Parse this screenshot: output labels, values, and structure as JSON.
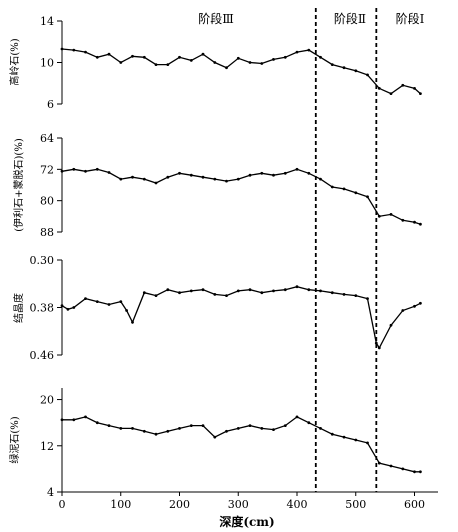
{
  "chart_data": [
    {
      "type": "line",
      "ylabel": "高岭石(%)",
      "ylim": [
        6,
        14
      ],
      "y_ticks": [
        "14",
        "10",
        "6"
      ],
      "y_tick_values": [
        14,
        10,
        6
      ],
      "inverted": false,
      "x": [
        0,
        20,
        40,
        60,
        80,
        100,
        120,
        140,
        160,
        180,
        200,
        220,
        240,
        260,
        280,
        300,
        320,
        340,
        360,
        380,
        400,
        420,
        440,
        460,
        480,
        500,
        520,
        540,
        560,
        580,
        600,
        610
      ],
      "values": [
        11.3,
        11.2,
        11.0,
        10.5,
        10.8,
        10.0,
        10.6,
        10.5,
        9.8,
        9.8,
        10.5,
        10.2,
        10.8,
        10.0,
        9.5,
        10.4,
        10.0,
        9.9,
        10.3,
        10.5,
        11.0,
        11.2,
        10.5,
        9.8,
        9.5,
        9.2,
        8.8,
        7.5,
        7.0,
        7.8,
        7.5,
        7.0
      ]
    },
    {
      "type": "line",
      "ylabel": "(伊利石+蒙脱石)(%)",
      "ylim": [
        64,
        88
      ],
      "y_ticks": [
        "64",
        "72",
        "80",
        "88"
      ],
      "y_tick_values": [
        64,
        72,
        80,
        88
      ],
      "inverted": true,
      "x": [
        0,
        20,
        40,
        60,
        80,
        100,
        120,
        140,
        160,
        180,
        200,
        220,
        240,
        260,
        280,
        300,
        320,
        340,
        360,
        380,
        400,
        420,
        440,
        460,
        480,
        500,
        520,
        540,
        560,
        580,
        600,
        610
      ],
      "values": [
        72.5,
        72.0,
        72.5,
        72.0,
        72.8,
        74.5,
        74.0,
        74.5,
        75.5,
        74.0,
        73.0,
        73.5,
        74.0,
        74.5,
        75.0,
        74.5,
        73.5,
        73.0,
        73.5,
        73.0,
        72.0,
        73.0,
        74.5,
        76.5,
        77.0,
        78.0,
        79.0,
        84.0,
        83.5,
        85.0,
        85.5,
        86.0
      ]
    },
    {
      "type": "line",
      "ylabel": "结晶度",
      "ylim": [
        0.3,
        0.46
      ],
      "y_ticks": [
        "0.30",
        "0.38",
        "0.46"
      ],
      "y_tick_values": [
        0.3,
        0.38,
        0.46
      ],
      "inverted": true,
      "x": [
        0,
        10,
        20,
        40,
        60,
        80,
        100,
        110,
        120,
        140,
        160,
        180,
        200,
        220,
        240,
        260,
        280,
        300,
        320,
        340,
        360,
        380,
        400,
        420,
        440,
        460,
        480,
        500,
        520,
        535,
        540,
        560,
        580,
        600,
        610
      ],
      "values": [
        0.377,
        0.383,
        0.38,
        0.365,
        0.37,
        0.375,
        0.37,
        0.385,
        0.405,
        0.355,
        0.36,
        0.35,
        0.355,
        0.352,
        0.35,
        0.358,
        0.36,
        0.352,
        0.35,
        0.355,
        0.352,
        0.35,
        0.345,
        0.35,
        0.352,
        0.355,
        0.358,
        0.36,
        0.365,
        0.44,
        0.448,
        0.41,
        0.385,
        0.378,
        0.373
      ]
    },
    {
      "type": "line",
      "ylabel": "绿泥石(%)",
      "ylim": [
        4,
        22
      ],
      "y_ticks": [
        "20",
        "12",
        "4"
      ],
      "y_tick_values": [
        20,
        12,
        4
      ],
      "inverted": false,
      "x": [
        0,
        20,
        40,
        60,
        80,
        100,
        120,
        140,
        160,
        180,
        200,
        220,
        240,
        260,
        280,
        300,
        320,
        340,
        360,
        380,
        400,
        420,
        440,
        460,
        480,
        500,
        520,
        540,
        560,
        580,
        600,
        610
      ],
      "values": [
        16.5,
        16.5,
        17.0,
        16.0,
        15.5,
        15.0,
        15.0,
        14.5,
        14.0,
        14.5,
        15.0,
        15.5,
        15.5,
        13.5,
        14.5,
        15.0,
        15.5,
        15.0,
        14.8,
        15.5,
        17.0,
        16.0,
        15.0,
        14.0,
        13.5,
        13.0,
        12.5,
        9.0,
        8.5,
        8.0,
        7.5,
        7.5
      ]
    }
  ],
  "x_axis": {
    "label": "深度(cm)",
    "ticks": [
      "0",
      "100",
      "200",
      "300",
      "400",
      "500",
      "600"
    ],
    "tick_values": [
      0,
      100,
      200,
      300,
      400,
      500,
      600
    ],
    "xlim": [
      0,
      640
    ]
  },
  "stage_boundaries": [
    432,
    535
  ],
  "stage_labels": [
    "阶段Ⅲ",
    "阶段Ⅱ",
    "阶段Ⅰ"
  ]
}
